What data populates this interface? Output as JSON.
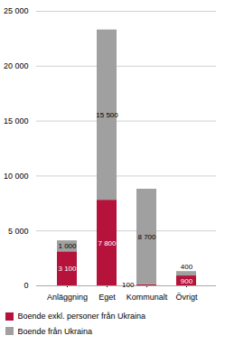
{
  "chart_data": {
    "type": "bar",
    "stacked": true,
    "categories": [
      "Anläggning",
      "Eget",
      "Kommunalt",
      "Övrigt"
    ],
    "series": [
      {
        "name": "Boende exkl. personer från Ukraina",
        "color": "#b5133b",
        "values": [
          3100,
          7800,
          100,
          900
        ],
        "value_labels": [
          "3 100",
          "7 800",
          "100",
          "900"
        ]
      },
      {
        "name": "Boende från Ukraina",
        "color": "#a0a0a0",
        "values": [
          1000,
          15500,
          8700,
          400
        ],
        "value_labels": [
          "1 000",
          "15 500",
          "8 700",
          "400"
        ]
      }
    ],
    "ylim": [
      0,
      25000
    ],
    "yticks": [
      0,
      {
        "value": 5000,
        "label": "5 000"
      },
      {
        "value": 10000,
        "label": "10 000"
      },
      {
        "value": 15000,
        "label": "15 000"
      },
      {
        "value": 20000,
        "label": "20 000"
      },
      {
        "value": 25000,
        "label": "25 000"
      }
    ],
    "grid": true,
    "data_labels": true,
    "legend": "bottom"
  }
}
